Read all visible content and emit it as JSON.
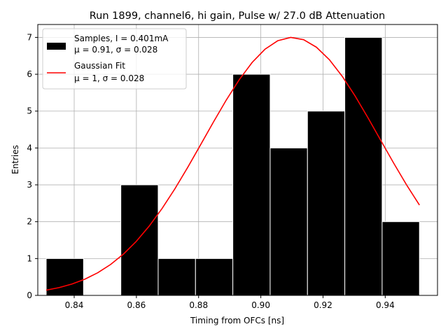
{
  "chart_data": {
    "type": "bar",
    "title": "Run 1899, channel6, hi gain, Pulse w/ 27.0 dB Attenuation",
    "xlabel": "Timing from OFCs [ns]",
    "ylabel": "Entries",
    "xlim": [
      0.8283,
      0.9568
    ],
    "ylim": [
      0,
      7.35
    ],
    "xticks": [
      0.84,
      0.86,
      0.88,
      0.9,
      0.92,
      0.94
    ],
    "xtick_labels": [
      "0.84",
      "0.86",
      "0.88",
      "0.90",
      "0.92",
      "0.94"
    ],
    "yticks": [
      0,
      1,
      2,
      3,
      4,
      5,
      6,
      7
    ],
    "ytick_labels": [
      "0",
      "1",
      "2",
      "3",
      "4",
      "5",
      "6",
      "7"
    ],
    "grid": true,
    "legend_position": "top-left",
    "histogram": {
      "name": "Samples",
      "legend_line1": "Samples, I = 0.401mA",
      "legend_line2": "μ = 0.91, σ = 0.028",
      "color": "#000000",
      "edge_color": "#ffffff",
      "bin_edges": [
        0.831,
        0.843,
        0.855,
        0.867,
        0.879,
        0.891,
        0.903,
        0.915,
        0.927,
        0.939,
        0.951
      ],
      "counts": [
        1,
        0,
        3,
        1,
        1,
        6,
        4,
        5,
        7,
        2
      ]
    },
    "fit": {
      "name": "Gaussian Fit",
      "legend_line1": "Gaussian Fit",
      "legend_line2": "μ = 1, σ = 0.028",
      "color": "#ff0000",
      "amplitude": 7.0,
      "mean": 0.91,
      "sigma": 0.0283,
      "x_range": [
        0.831,
        0.951
      ],
      "samples": 30
    }
  }
}
